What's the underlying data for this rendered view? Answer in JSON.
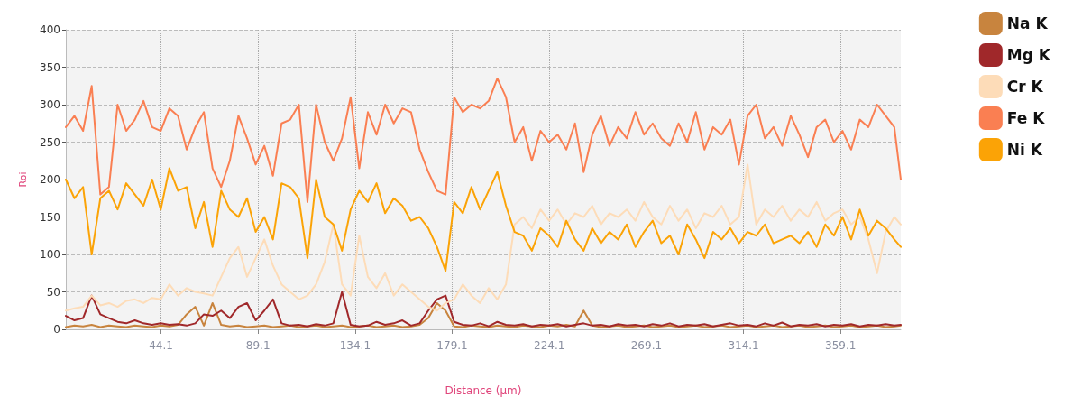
{
  "chart_data": {
    "type": "line",
    "xlabel": "Distance (µm)",
    "ylabel": "Roi",
    "x": [
      0,
      4,
      8,
      12,
      16,
      20,
      24,
      28,
      32,
      36,
      40,
      44,
      48,
      52,
      56,
      60,
      64,
      68,
      72,
      76,
      80,
      84,
      88,
      92,
      96,
      100,
      104,
      108,
      112,
      116,
      120,
      124,
      128,
      132,
      136,
      140,
      144,
      148,
      152,
      156,
      160,
      164,
      168,
      172,
      176,
      180,
      184,
      188,
      192,
      196,
      200,
      204,
      208,
      212,
      216,
      220,
      224,
      228,
      232,
      236,
      240,
      244,
      248,
      252,
      256,
      260,
      264,
      268,
      272,
      276,
      280,
      284,
      288,
      292,
      296,
      300,
      304,
      308,
      312,
      316,
      320,
      324,
      328,
      332,
      336,
      340,
      344,
      348,
      352,
      356,
      360,
      364,
      368,
      372,
      376,
      380,
      384,
      387
    ],
    "series": [
      {
        "name": "Na K",
        "color": "#c8843e",
        "values": [
          3,
          5,
          4,
          6,
          3,
          5,
          4,
          3,
          5,
          4,
          3,
          5,
          4,
          6,
          20,
          30,
          5,
          35,
          6,
          4,
          5,
          3,
          4,
          5,
          3,
          4,
          5,
          3,
          4,
          5,
          3,
          4,
          5,
          3,
          4,
          5,
          3,
          4,
          5,
          3,
          4,
          6,
          15,
          35,
          25,
          4,
          3,
          5,
          4,
          3,
          5,
          4,
          3,
          5,
          4,
          3,
          5,
          4,
          6,
          4,
          25,
          5,
          3,
          4,
          5,
          3,
          4,
          5,
          3,
          4,
          5,
          3,
          4,
          5,
          3,
          4,
          5,
          3,
          4,
          5,
          3,
          4,
          5,
          3,
          4,
          5,
          3,
          4,
          5,
          3,
          4,
          5,
          3,
          4,
          5,
          3,
          4,
          5
        ]
      },
      {
        "name": "Mg K",
        "color": "#a0282a",
        "values": [
          18,
          12,
          15,
          45,
          20,
          15,
          10,
          8,
          12,
          8,
          6,
          8,
          6,
          7,
          5,
          8,
          20,
          18,
          25,
          15,
          30,
          35,
          12,
          25,
          40,
          8,
          5,
          6,
          4,
          7,
          5,
          8,
          50,
          6,
          4,
          5,
          10,
          6,
          8,
          12,
          5,
          8,
          25,
          40,
          45,
          10,
          6,
          5,
          8,
          4,
          10,
          6,
          5,
          7,
          4,
          6,
          5,
          7,
          4,
          6,
          8,
          5,
          6,
          4,
          7,
          5,
          6,
          4,
          7,
          5,
          8,
          4,
          6,
          5,
          7,
          4,
          6,
          8,
          5,
          6,
          4,
          8,
          5,
          9,
          4,
          6,
          5,
          7,
          4,
          6,
          5,
          7,
          4,
          6,
          5,
          7,
          5,
          6
        ]
      },
      {
        "name": "Cr K",
        "color": "#fddcb8",
        "values": [
          25,
          28,
          30,
          45,
          32,
          35,
          30,
          38,
          40,
          35,
          42,
          40,
          60,
          45,
          55,
          50,
          48,
          45,
          70,
          95,
          110,
          70,
          95,
          120,
          85,
          60,
          50,
          40,
          45,
          60,
          90,
          140,
          60,
          45,
          125,
          70,
          55,
          75,
          45,
          60,
          50,
          40,
          30,
          25,
          35,
          40,
          60,
          45,
          35,
          55,
          40,
          60,
          140,
          150,
          135,
          160,
          145,
          160,
          140,
          155,
          150,
          165,
          140,
          155,
          150,
          160,
          145,
          170,
          150,
          140,
          165,
          145,
          160,
          135,
          155,
          150,
          165,
          140,
          150,
          220,
          140,
          160,
          150,
          165,
          145,
          160,
          150,
          170,
          145,
          155,
          160,
          140,
          150,
          120,
          75,
          130,
          150,
          140
        ]
      },
      {
        "name": "Fe K",
        "color": "#fa7f52",
        "values": [
          270,
          285,
          265,
          325,
          180,
          190,
          300,
          265,
          280,
          305,
          270,
          265,
          295,
          285,
          240,
          270,
          290,
          215,
          190,
          225,
          285,
          255,
          220,
          245,
          205,
          275,
          280,
          300,
          170,
          300,
          250,
          225,
          255,
          310,
          215,
          290,
          260,
          300,
          275,
          295,
          290,
          240,
          210,
          185,
          180,
          310,
          290,
          300,
          295,
          305,
          335,
          310,
          250,
          270,
          225,
          265,
          250,
          260,
          240,
          275,
          210,
          260,
          285,
          245,
          270,
          255,
          290,
          260,
          275,
          255,
          245,
          275,
          250,
          290,
          240,
          270,
          260,
          280,
          220,
          285,
          300,
          255,
          270,
          245,
          285,
          260,
          230,
          270,
          280,
          250,
          265,
          240,
          280,
          270,
          300,
          285,
          270,
          200
        ]
      },
      {
        "name": "Ni K",
        "color": "#fba306",
        "values": [
          200,
          175,
          190,
          100,
          175,
          185,
          160,
          195,
          180,
          165,
          200,
          160,
          215,
          185,
          190,
          135,
          170,
          110,
          185,
          160,
          150,
          175,
          130,
          150,
          120,
          195,
          190,
          175,
          95,
          200,
          150,
          140,
          105,
          160,
          185,
          170,
          195,
          155,
          175,
          165,
          145,
          150,
          135,
          110,
          78,
          170,
          155,
          190,
          160,
          185,
          210,
          165,
          130,
          125,
          105,
          135,
          125,
          110,
          145,
          120,
          105,
          135,
          115,
          130,
          120,
          140,
          110,
          130,
          145,
          115,
          125,
          100,
          140,
          120,
          95,
          130,
          120,
          135,
          115,
          130,
          125,
          140,
          115,
          120,
          125,
          115,
          130,
          110,
          140,
          125,
          150,
          120,
          160,
          125,
          145,
          135,
          120,
          110
        ]
      }
    ],
    "xlim": [
      0,
      387
    ],
    "xticks": [
      44.1,
      89.1,
      134.1,
      179.1,
      224.1,
      269.1,
      314.1,
      359.1
    ],
    "ylim": [
      0,
      400
    ],
    "yticks": [
      0,
      50,
      100,
      150,
      200,
      250,
      300,
      350,
      400
    ],
    "grid": true,
    "legend": "right",
    "marker": "none",
    "line_style": "solid"
  }
}
